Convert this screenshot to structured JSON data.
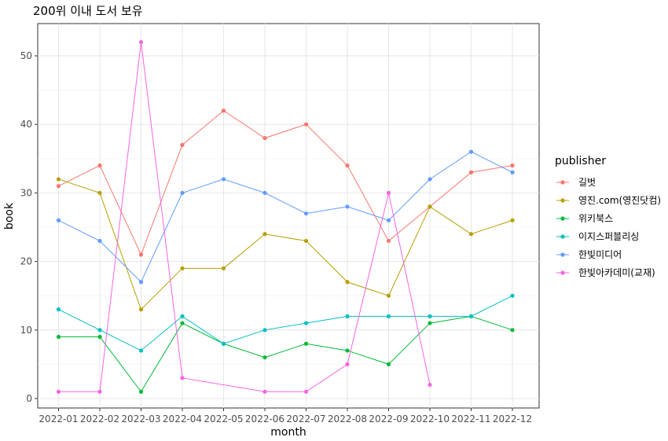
{
  "chart_data": {
    "type": "line",
    "title": "200위 이내 도서 보유",
    "xlabel": "month",
    "ylabel": "book",
    "categories": [
      "2022-01",
      "2022-02",
      "2022-03",
      "2022-04",
      "2022-05",
      "2022-06",
      "2022-07",
      "2022-08",
      "2022-09",
      "2022-10",
      "2022-11",
      "2022-12"
    ],
    "ylim": [
      -1,
      55
    ],
    "yticks": [
      0,
      10,
      20,
      30,
      40,
      50
    ],
    "grid": true,
    "legend": {
      "title": "publisher",
      "placement": "right"
    },
    "series": [
      {
        "name": "길벗",
        "color": "#F8766D",
        "values": [
          31,
          34,
          21,
          37,
          42,
          38,
          40,
          34,
          23,
          28,
          33,
          34
        ]
      },
      {
        "name": "영진.com(영진닷컴)",
        "color": "#B79F00",
        "values": [
          32,
          30,
          13,
          19,
          19,
          24,
          23,
          17,
          15,
          28,
          24,
          26
        ]
      },
      {
        "name": "위키북스",
        "color": "#00BA38",
        "values": [
          9,
          9,
          1,
          11,
          8,
          6,
          8,
          7,
          5,
          11,
          12,
          10
        ]
      },
      {
        "name": "이지스퍼블리싱",
        "color": "#00BFC4",
        "values": [
          13,
          10,
          7,
          12,
          8,
          10,
          11,
          12,
          12,
          12,
          12,
          15
        ]
      },
      {
        "name": "한빛미디어",
        "color": "#619CFF",
        "values": [
          26,
          23,
          17,
          30,
          32,
          30,
          27,
          28,
          26,
          32,
          36,
          33
        ]
      },
      {
        "name": "한빛아카데미(교재)",
        "color": "#F564E3",
        "values": [
          1,
          1,
          52,
          3,
          null,
          1,
          1,
          5,
          30,
          2,
          null,
          null
        ]
      }
    ]
  }
}
